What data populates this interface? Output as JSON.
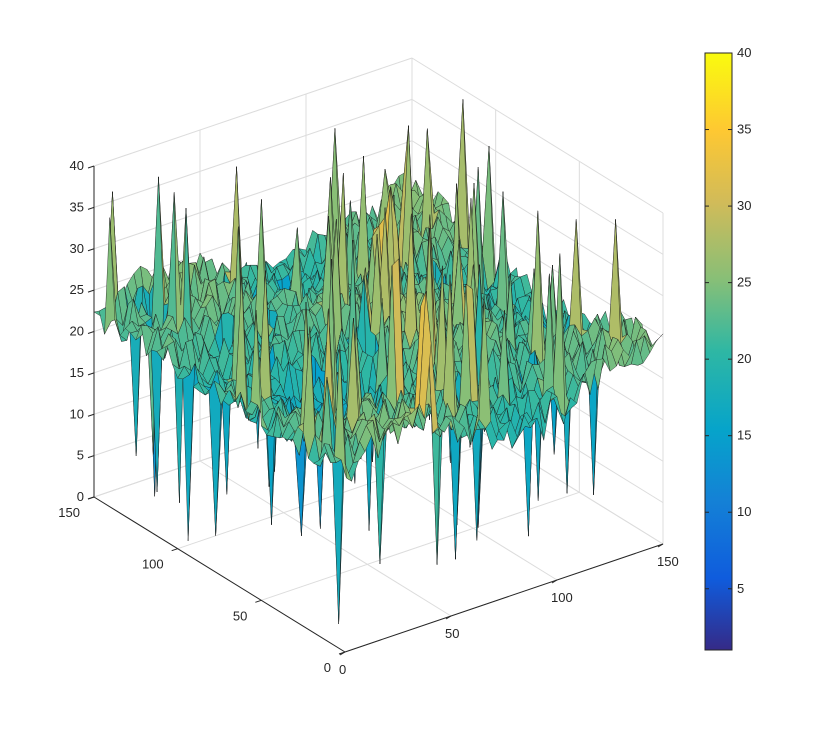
{
  "chart_data": {
    "type": "surface",
    "title": "",
    "xlabel": "",
    "ylabel": "",
    "zlabel": "",
    "xlim": [
      0,
      150
    ],
    "ylim": [
      0,
      150
    ],
    "zlim": [
      0,
      40
    ],
    "x_ticks": [
      "0",
      "50",
      "100",
      "150"
    ],
    "y_ticks": [
      "0",
      "50",
      "100",
      "150"
    ],
    "z_ticks": [
      "0",
      "5",
      "10",
      "15",
      "20",
      "25",
      "30",
      "35",
      "40"
    ],
    "grid": true,
    "colormap": "parula",
    "colorbar": {
      "range": [
        1,
        40
      ],
      "ticks": [
        "5",
        "10",
        "15",
        "20",
        "25",
        "30",
        "35",
        "40"
      ]
    },
    "surface": {
      "grid_size": [
        150,
        150
      ],
      "typical_z_range": [
        18,
        28
      ],
      "peak_z": 40,
      "min_z": 0
    }
  }
}
